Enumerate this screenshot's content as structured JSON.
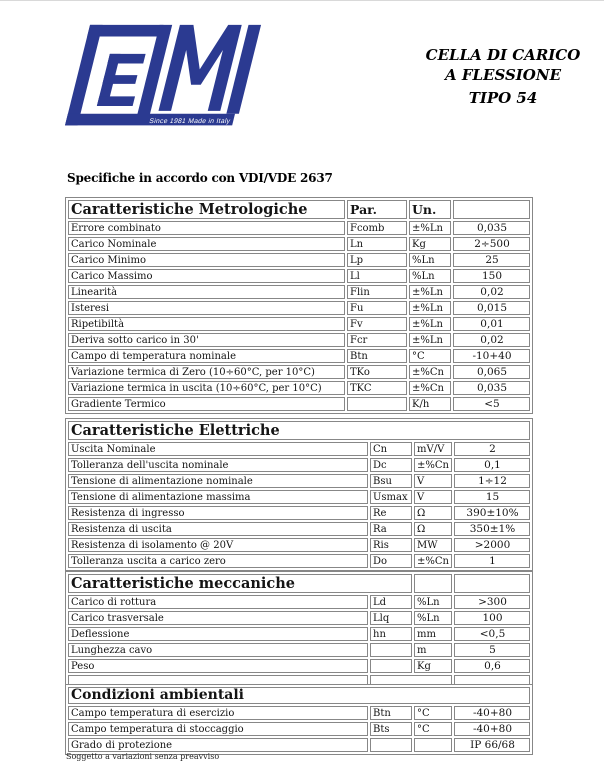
{
  "logo": {
    "text": "ELMI",
    "tagline": "Since 1981 Made in Italy",
    "color": "#2b3a91"
  },
  "title": {
    "line1": "CELLA DI CARICO",
    "line2": "A FLESSIONE",
    "line3": "TIPO 54"
  },
  "heading": "Specifiche in accordo con VDI/VDE 2637",
  "footer": "Soggetto a variazioni senza preavviso",
  "colors": {
    "logo_blue": "#2b3a91",
    "table_border": "#878787"
  },
  "tables": [
    {
      "title": "Caratteristiche Metrologiche",
      "par_label": "Par.",
      "un_label": "Un.",
      "rows": [
        {
          "label": "Errore combinato",
          "par": "Fcomb",
          "un": "±%Ln",
          "value": "0,035"
        },
        {
          "label": "Carico Nominale",
          "par": "Ln",
          "un": "Kg",
          "value": "2÷500"
        },
        {
          "label": "Carico Minimo",
          "par": "Lp",
          "un": "%Ln",
          "value": "25"
        },
        {
          "label": "Carico Massimo",
          "par": "Ll",
          "un": "%Ln",
          "value": "150"
        },
        {
          "label": "Linearità",
          "par": "Flin",
          "un": "±%Ln",
          "value": "0,02"
        },
        {
          "label": "Isteresi",
          "par": "Fu",
          "un": "±%Ln",
          "value": "0,015"
        },
        {
          "label": "Ripetibiltà",
          "par": "Fv",
          "un": "±%Ln",
          "value": "0,01"
        },
        {
          "label": "Deriva sotto carico in 30'",
          "par": "Fcr",
          "un": "±%Ln",
          "value": "0,02"
        },
        {
          "label": "Campo di temperatura nominale",
          "par": "Btn",
          "un": "°C",
          "value": "-10+40"
        },
        {
          "label": "Variazione termica di Zero (10÷60°C, per 10°C)",
          "par": "TKo",
          "un": "±%Cn",
          "value": "0,065"
        },
        {
          "label": "Variazione termica in uscita (10÷60°C, per 10°C)",
          "par": "TKC",
          "un": "±%Cn",
          "value": "0,035"
        },
        {
          "label": "Gradiente Termico",
          "par": "",
          "un": "K/h",
          "value": "<5"
        }
      ]
    },
    {
      "title": "Caratteristiche Elettriche",
      "rows": [
        {
          "label": "Uscita Nominale",
          "par": "Cn",
          "un": "mV/V",
          "value": "2"
        },
        {
          "label": "Tolleranza dell'uscita nominale",
          "par": "Dc",
          "un": "±%Cn",
          "value": "0,1"
        },
        {
          "label": "Tensione di alimentazione nominale",
          "par": "Bsu",
          "un": "V",
          "value": "1÷12"
        },
        {
          "label": "Tensione di alimentazione massima",
          "par": "Usmax",
          "un": "V",
          "value": "15"
        },
        {
          "label": "Resistenza di ingresso",
          "par": "Re",
          "un": "Ω",
          "value": "390±10%"
        },
        {
          "label": "Resistenza di uscita",
          "par": "Ra",
          "un": "Ω",
          "value": "350±1%"
        },
        {
          "label": "Resistenza di isolamento @ 20V",
          "par": "Ris",
          "un": "MW",
          "value": ">2000"
        },
        {
          "label": "Tolleranza uscita a carico zero",
          "par": "Do",
          "un": "±%Cn",
          "value": "1"
        }
      ]
    },
    {
      "title": "Caratteristiche meccaniche",
      "rows": [
        {
          "label": "Carico di rottura",
          "par": "Ld",
          "un": "%Ln",
          "value": ">300"
        },
        {
          "label": "Carico trasversale",
          "par": "Llq",
          "un": "%Ln",
          "value": "100"
        },
        {
          "label": "Deflessione",
          "par": "hn",
          "un": "mm",
          "value": "<0,5"
        },
        {
          "label": "Lunghezza cavo",
          "par": "",
          "un": "m",
          "value": "5"
        },
        {
          "label": "Peso",
          "par": "",
          "un": "Kg",
          "value": "0,6"
        }
      ]
    },
    {
      "title": "Condizioni ambientali",
      "rows": [
        {
          "label": "Campo temperatura di esercizio",
          "par": "Btn",
          "un": "°C",
          "value": "-40+80"
        },
        {
          "label": "Campo temperatura di stoccaggio",
          "par": "Bts",
          "un": "°C",
          "value": "-40+80"
        },
        {
          "label": "Grado di protezione",
          "par": "",
          "un": "",
          "value": "IP 66/68"
        }
      ]
    }
  ]
}
